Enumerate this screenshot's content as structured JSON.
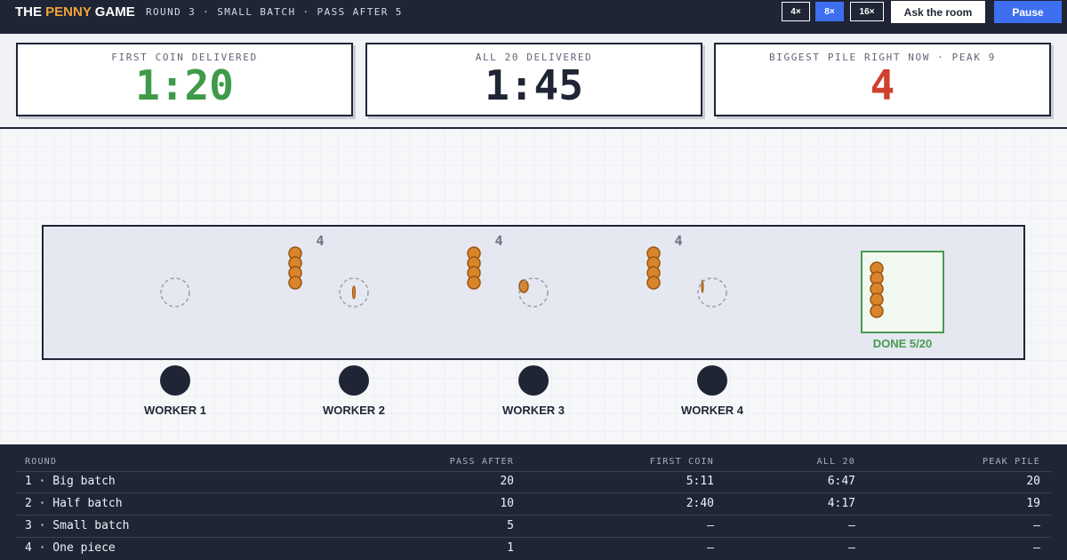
{
  "header": {
    "brand": [
      "THE",
      "PENNY",
      "GAME"
    ],
    "subtitle": "ROUND 3 · SMALL BATCH · PASS AFTER 5",
    "speeds": [
      "4×",
      "8×",
      "16×"
    ],
    "active_speed": 1,
    "buttons": [
      "Ask the room",
      "Pause"
    ]
  },
  "stats": [
    {
      "label": "FIRST COIN DELIVERED",
      "value": "1:20",
      "color": "#3f9a4a"
    },
    {
      "label": "ALL 20 DELIVERED",
      "value": "1:45",
      "color": "#1f2535"
    },
    {
      "label": "BIGGEST PILE RIGHT NOW · PEAK 9",
      "value": "4",
      "color": "#d0402e"
    }
  ],
  "floor": {
    "workers": [
      "WORKER 1",
      "WORKER 2",
      "WORKER 3",
      "WORKER 4"
    ],
    "piles": [
      4,
      4,
      4
    ],
    "done": "DONE 5/20"
  },
  "table": {
    "columns": [
      "ROUND",
      "PASS AFTER",
      "FIRST COIN",
      "ALL 20",
      "PEAK PILE"
    ],
    "rows": [
      [
        "1 · Big batch",
        20,
        "5:11",
        "6:47",
        20
      ],
      [
        "2 · Half batch",
        10,
        "2:40",
        "4:17",
        19
      ],
      [
        "3 · Small batch",
        5,
        "—",
        "—",
        "—"
      ],
      [
        "4 · One piece",
        1,
        "—",
        "—",
        "—"
      ]
    ]
  }
}
